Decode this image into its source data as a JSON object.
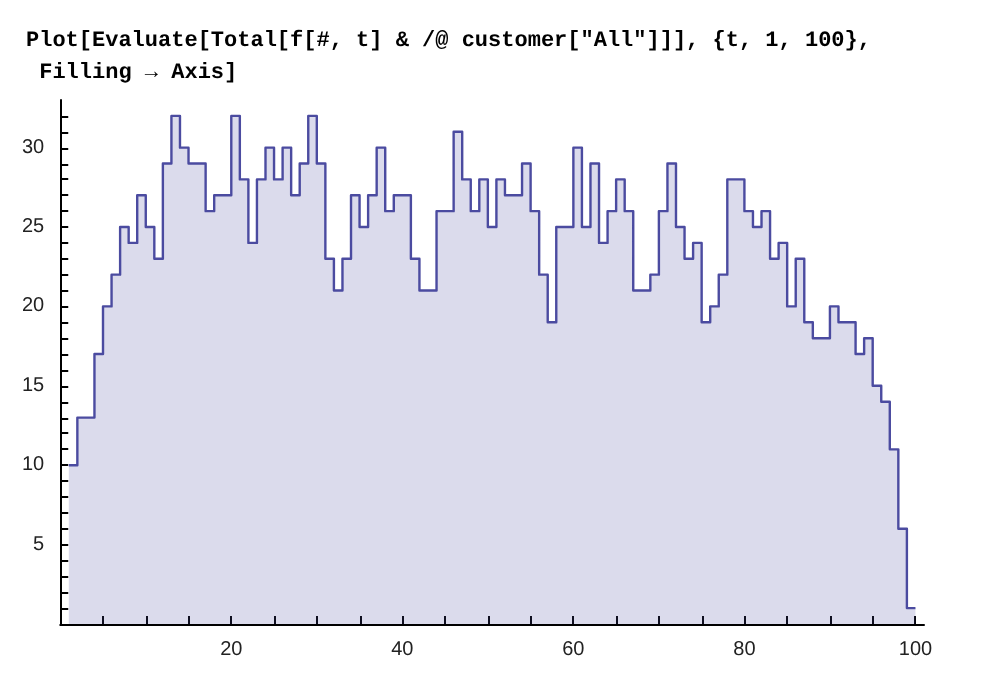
{
  "chart_data": {
    "type": "area",
    "title": "Plot[Evaluate[Total[f[#, t] & /@ customer[\"All\"]]], {t, 1, 100},\n Filling → Axis]",
    "x": [
      1,
      2,
      2,
      3,
      3,
      4,
      4,
      5,
      5,
      6,
      6,
      7,
      7,
      8,
      8,
      9,
      9,
      10,
      10,
      11,
      11,
      12,
      12,
      13,
      13,
      14,
      14,
      15,
      15,
      16,
      16,
      17,
      17,
      18,
      18,
      19,
      19,
      20,
      20,
      21,
      21,
      22,
      22,
      23,
      23,
      24,
      24,
      25,
      25,
      26,
      26,
      27,
      27,
      28,
      28,
      29,
      29,
      30,
      30,
      31,
      31,
      32,
      32,
      33,
      33,
      34,
      34,
      35,
      35,
      36,
      36,
      37,
      37,
      38,
      38,
      39,
      39,
      40,
      40,
      41,
      41,
      42,
      42,
      43,
      43,
      44,
      44,
      45,
      45,
      46,
      46,
      47,
      47,
      48,
      48,
      49,
      49,
      50,
      50,
      51,
      51,
      52,
      52,
      53,
      53,
      54,
      54,
      55,
      55,
      56,
      56,
      57,
      57,
      58,
      58,
      59,
      59,
      60,
      60,
      61,
      61,
      62,
      62,
      63,
      63,
      64,
      64,
      65,
      65,
      66,
      66,
      67,
      67,
      68,
      68,
      69,
      69,
      70,
      70,
      71,
      71,
      72,
      72,
      73,
      73,
      74,
      74,
      75,
      75,
      76,
      76,
      77,
      77,
      78,
      78,
      79,
      79,
      80,
      80,
      81,
      81,
      82,
      82,
      83,
      83,
      84,
      84,
      85,
      85,
      86,
      86,
      87,
      87,
      88,
      88,
      89,
      89,
      90,
      90,
      91,
      91,
      92,
      92,
      93,
      93,
      94,
      94,
      95,
      95,
      96,
      96,
      97,
      97,
      98,
      98,
      99,
      99,
      100
    ],
    "series": [
      {
        "color": "#4b4ba0",
        "values": [
          10,
          10,
          13,
          13,
          13,
          13,
          17,
          17,
          20,
          20,
          22,
          22,
          25,
          25,
          24,
          24,
          27,
          27,
          25,
          25,
          23,
          23,
          29,
          29,
          32,
          32,
          30,
          30,
          29,
          29,
          29,
          29,
          26,
          26,
          27,
          27,
          27,
          27,
          32,
          32,
          28,
          28,
          24,
          24,
          28,
          28,
          30,
          30,
          28,
          28,
          30,
          30,
          27,
          27,
          29,
          29,
          32,
          32,
          29,
          29,
          23,
          23,
          21,
          21,
          23,
          23,
          27,
          27,
          25,
          25,
          27,
          27,
          30,
          30,
          26,
          26,
          27,
          27,
          27,
          27,
          23,
          23,
          21,
          21,
          21,
          21,
          26,
          26,
          26,
          26,
          31,
          31,
          28,
          28,
          26,
          26,
          28,
          28,
          25,
          25,
          28,
          28,
          27,
          27,
          27,
          27,
          29,
          29,
          26,
          26,
          22,
          22,
          19,
          19,
          25,
          25,
          25,
          25,
          30,
          30,
          25,
          25,
          29,
          29,
          24,
          24,
          26,
          26,
          28,
          28,
          26,
          26,
          21,
          21,
          21,
          21,
          22,
          22,
          26,
          26,
          29,
          29,
          25,
          25,
          23,
          23,
          24,
          24,
          19,
          19,
          20,
          20,
          22,
          22,
          28,
          28,
          28,
          28,
          26,
          26,
          25,
          25,
          26,
          26,
          23,
          23,
          24,
          24,
          20,
          20,
          23,
          23,
          19,
          19,
          18,
          18,
          18,
          18,
          20,
          20,
          19,
          19,
          19,
          19,
          17,
          17,
          18,
          18,
          15,
          15,
          14,
          14,
          11,
          11,
          6,
          6,
          1,
          1
        ]
      }
    ],
    "xlim": [
      0,
      101
    ],
    "xticks": [
      {
        "value": 5,
        "label": null
      },
      {
        "value": 10,
        "label": null
      },
      {
        "value": 15,
        "label": null
      },
      20,
      {
        "value": 25,
        "label": null
      },
      {
        "value": 30,
        "label": null
      },
      {
        "value": 35,
        "label": null
      },
      40,
      {
        "value": 45,
        "label": null
      },
      {
        "value": 50,
        "label": null
      },
      {
        "value": 55,
        "label": null
      },
      60,
      {
        "value": 65,
        "label": null
      },
      {
        "value": 70,
        "label": null
      },
      {
        "value": 75,
        "label": null
      },
      80,
      {
        "value": 85,
        "label": null
      },
      {
        "value": 90,
        "label": null
      },
      {
        "value": 95,
        "label": null
      },
      100
    ],
    "ylim": [
      0,
      33
    ],
    "yticks": [
      {
        "value": 1,
        "label": null
      },
      {
        "value": 2,
        "label": null
      },
      {
        "value": 3,
        "label": null
      },
      {
        "value": 4,
        "label": null
      },
      5,
      {
        "value": 6,
        "label": null
      },
      {
        "value": 7,
        "label": null
      },
      {
        "value": 8,
        "label": null
      },
      {
        "value": 9,
        "label": null
      },
      10,
      {
        "value": 11,
        "label": null
      },
      {
        "value": 12,
        "label": null
      },
      {
        "value": 13,
        "label": null
      },
      {
        "value": 14,
        "label": null
      },
      15,
      {
        "value": 16,
        "label": null
      },
      {
        "value": 17,
        "label": null
      },
      {
        "value": 18,
        "label": null
      },
      {
        "value": 19,
        "label": null
      },
      20,
      {
        "value": 21,
        "label": null
      },
      {
        "value": 22,
        "label": null
      },
      {
        "value": 23,
        "label": null
      },
      {
        "value": 24,
        "label": null
      },
      25,
      {
        "value": 26,
        "label": null
      },
      {
        "value": 27,
        "label": null
      },
      {
        "value": 28,
        "label": null
      },
      {
        "value": 29,
        "label": null
      },
      30,
      {
        "value": 31,
        "label": null
      },
      {
        "value": 32,
        "label": null
      }
    ],
    "grid": false
  }
}
